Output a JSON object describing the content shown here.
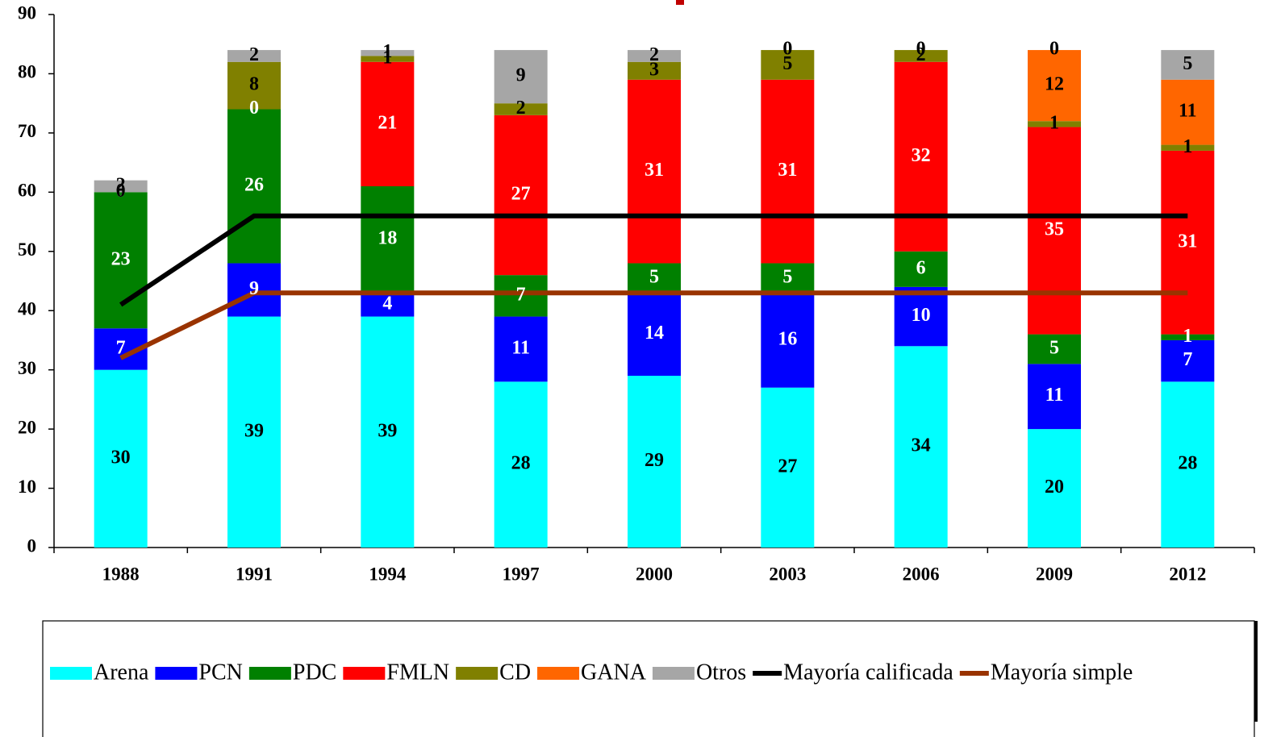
{
  "chart_data": {
    "type": "bar",
    "stacked": true,
    "categories": [
      "1988",
      "1991",
      "1994",
      "1997",
      "2000",
      "2003",
      "2006",
      "2009",
      "2012"
    ],
    "series": [
      {
        "name": "Arena",
        "color": "#00ffff",
        "label_color": "#000000",
        "values": [
          30,
          39,
          39,
          28,
          29,
          27,
          34,
          20,
          28
        ]
      },
      {
        "name": "PCN",
        "color": "#0000ff",
        "label_color": "#ffffff",
        "values": [
          7,
          9,
          4,
          11,
          14,
          16,
          10,
          11,
          7
        ]
      },
      {
        "name": "PDC",
        "color": "#008000",
        "label_color": "#ffffff",
        "values": [
          23,
          26,
          18,
          7,
          5,
          5,
          6,
          5,
          1
        ]
      },
      {
        "name": "FMLN",
        "color": "#ff0000",
        "label_color": "#ffffff",
        "values": [
          0,
          0,
          21,
          27,
          31,
          31,
          32,
          35,
          31
        ]
      },
      {
        "name": "CD",
        "color": "#808000",
        "label_color": "#000000",
        "values": [
          0,
          8,
          1,
          2,
          3,
          5,
          2,
          1,
          1
        ]
      },
      {
        "name": "GANA",
        "color": "#ff6600",
        "label_color": "#000000",
        "values": [
          null,
          null,
          null,
          null,
          null,
          null,
          null,
          12,
          11
        ]
      },
      {
        "name": "Otros",
        "color": "#a6a6a6",
        "label_color": "#000000",
        "values": [
          2,
          2,
          1,
          9,
          2,
          0,
          0,
          0,
          5
        ]
      },
      {
        "name": "Mayoría calificada",
        "type": "line",
        "color": "#000000",
        "values": [
          41,
          56,
          56,
          56,
          56,
          56,
          56,
          56,
          56
        ]
      },
      {
        "name": "Mayoría simple",
        "type": "line",
        "color": "#993300",
        "values": [
          32,
          43,
          43,
          43,
          43,
          43,
          43,
          43,
          43
        ]
      }
    ],
    "ylim": [
      0,
      90
    ],
    "yticks": [
      0,
      10,
      20,
      30,
      40,
      50,
      60,
      70,
      80,
      90
    ],
    "legend": "bottom"
  }
}
